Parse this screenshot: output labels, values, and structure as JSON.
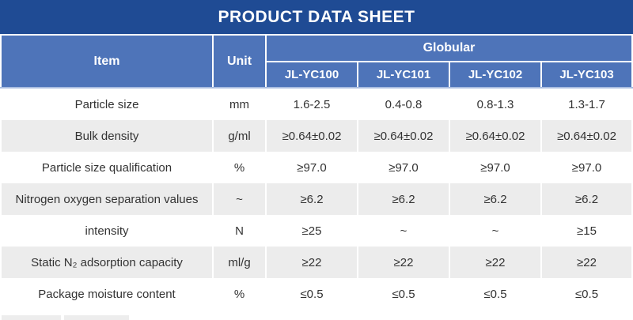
{
  "banner": {
    "title": "PRODUCT DATA SHEET"
  },
  "table": {
    "header": {
      "item": "Item",
      "unit": "Unit",
      "group": "Globular",
      "models": [
        "JL-YC100",
        "JL-YC101",
        "JL-YC102",
        "JL-YC103"
      ]
    },
    "rows": [
      {
        "item": "Particle size",
        "unit": "mm",
        "values": [
          "1.6-2.5",
          "0.4-0.8",
          "0.8-1.3",
          "1.3-1.7"
        ]
      },
      {
        "item": "Bulk density",
        "unit": "g/ml",
        "values": [
          "≥0.64±0.02",
          "≥0.64±0.02",
          "≥0.64±0.02",
          "≥0.64±0.02"
        ]
      },
      {
        "item": "Particle size qualification",
        "unit": "%",
        "values": [
          "≥97.0",
          "≥97.0",
          "≥97.0",
          "≥97.0"
        ]
      },
      {
        "item": "Nitrogen oxygen separation values",
        "unit": "~",
        "values": [
          "≥6.2",
          "≥6.2",
          "≥6.2",
          "≥6.2"
        ]
      },
      {
        "item": "intensity",
        "unit": "N",
        "values": [
          "≥25",
          "~",
          "~",
          "≥15"
        ]
      },
      {
        "item": "Static N₂ adsorption capacity",
        "unit": "ml/g",
        "values": [
          "≥22",
          "≥22",
          "≥22",
          "≥22"
        ]
      },
      {
        "item": "Package moisture content",
        "unit": "%",
        "values": [
          "≤0.5",
          "≤0.5",
          "≤0.5",
          "≤0.5"
        ]
      }
    ]
  },
  "colors": {
    "banner_blue": "#1F4B94",
    "header_blue": "#4E74B9",
    "header_border": "#A9BCE0",
    "row_gray": "#ECECEC",
    "body_text": "#333333"
  }
}
